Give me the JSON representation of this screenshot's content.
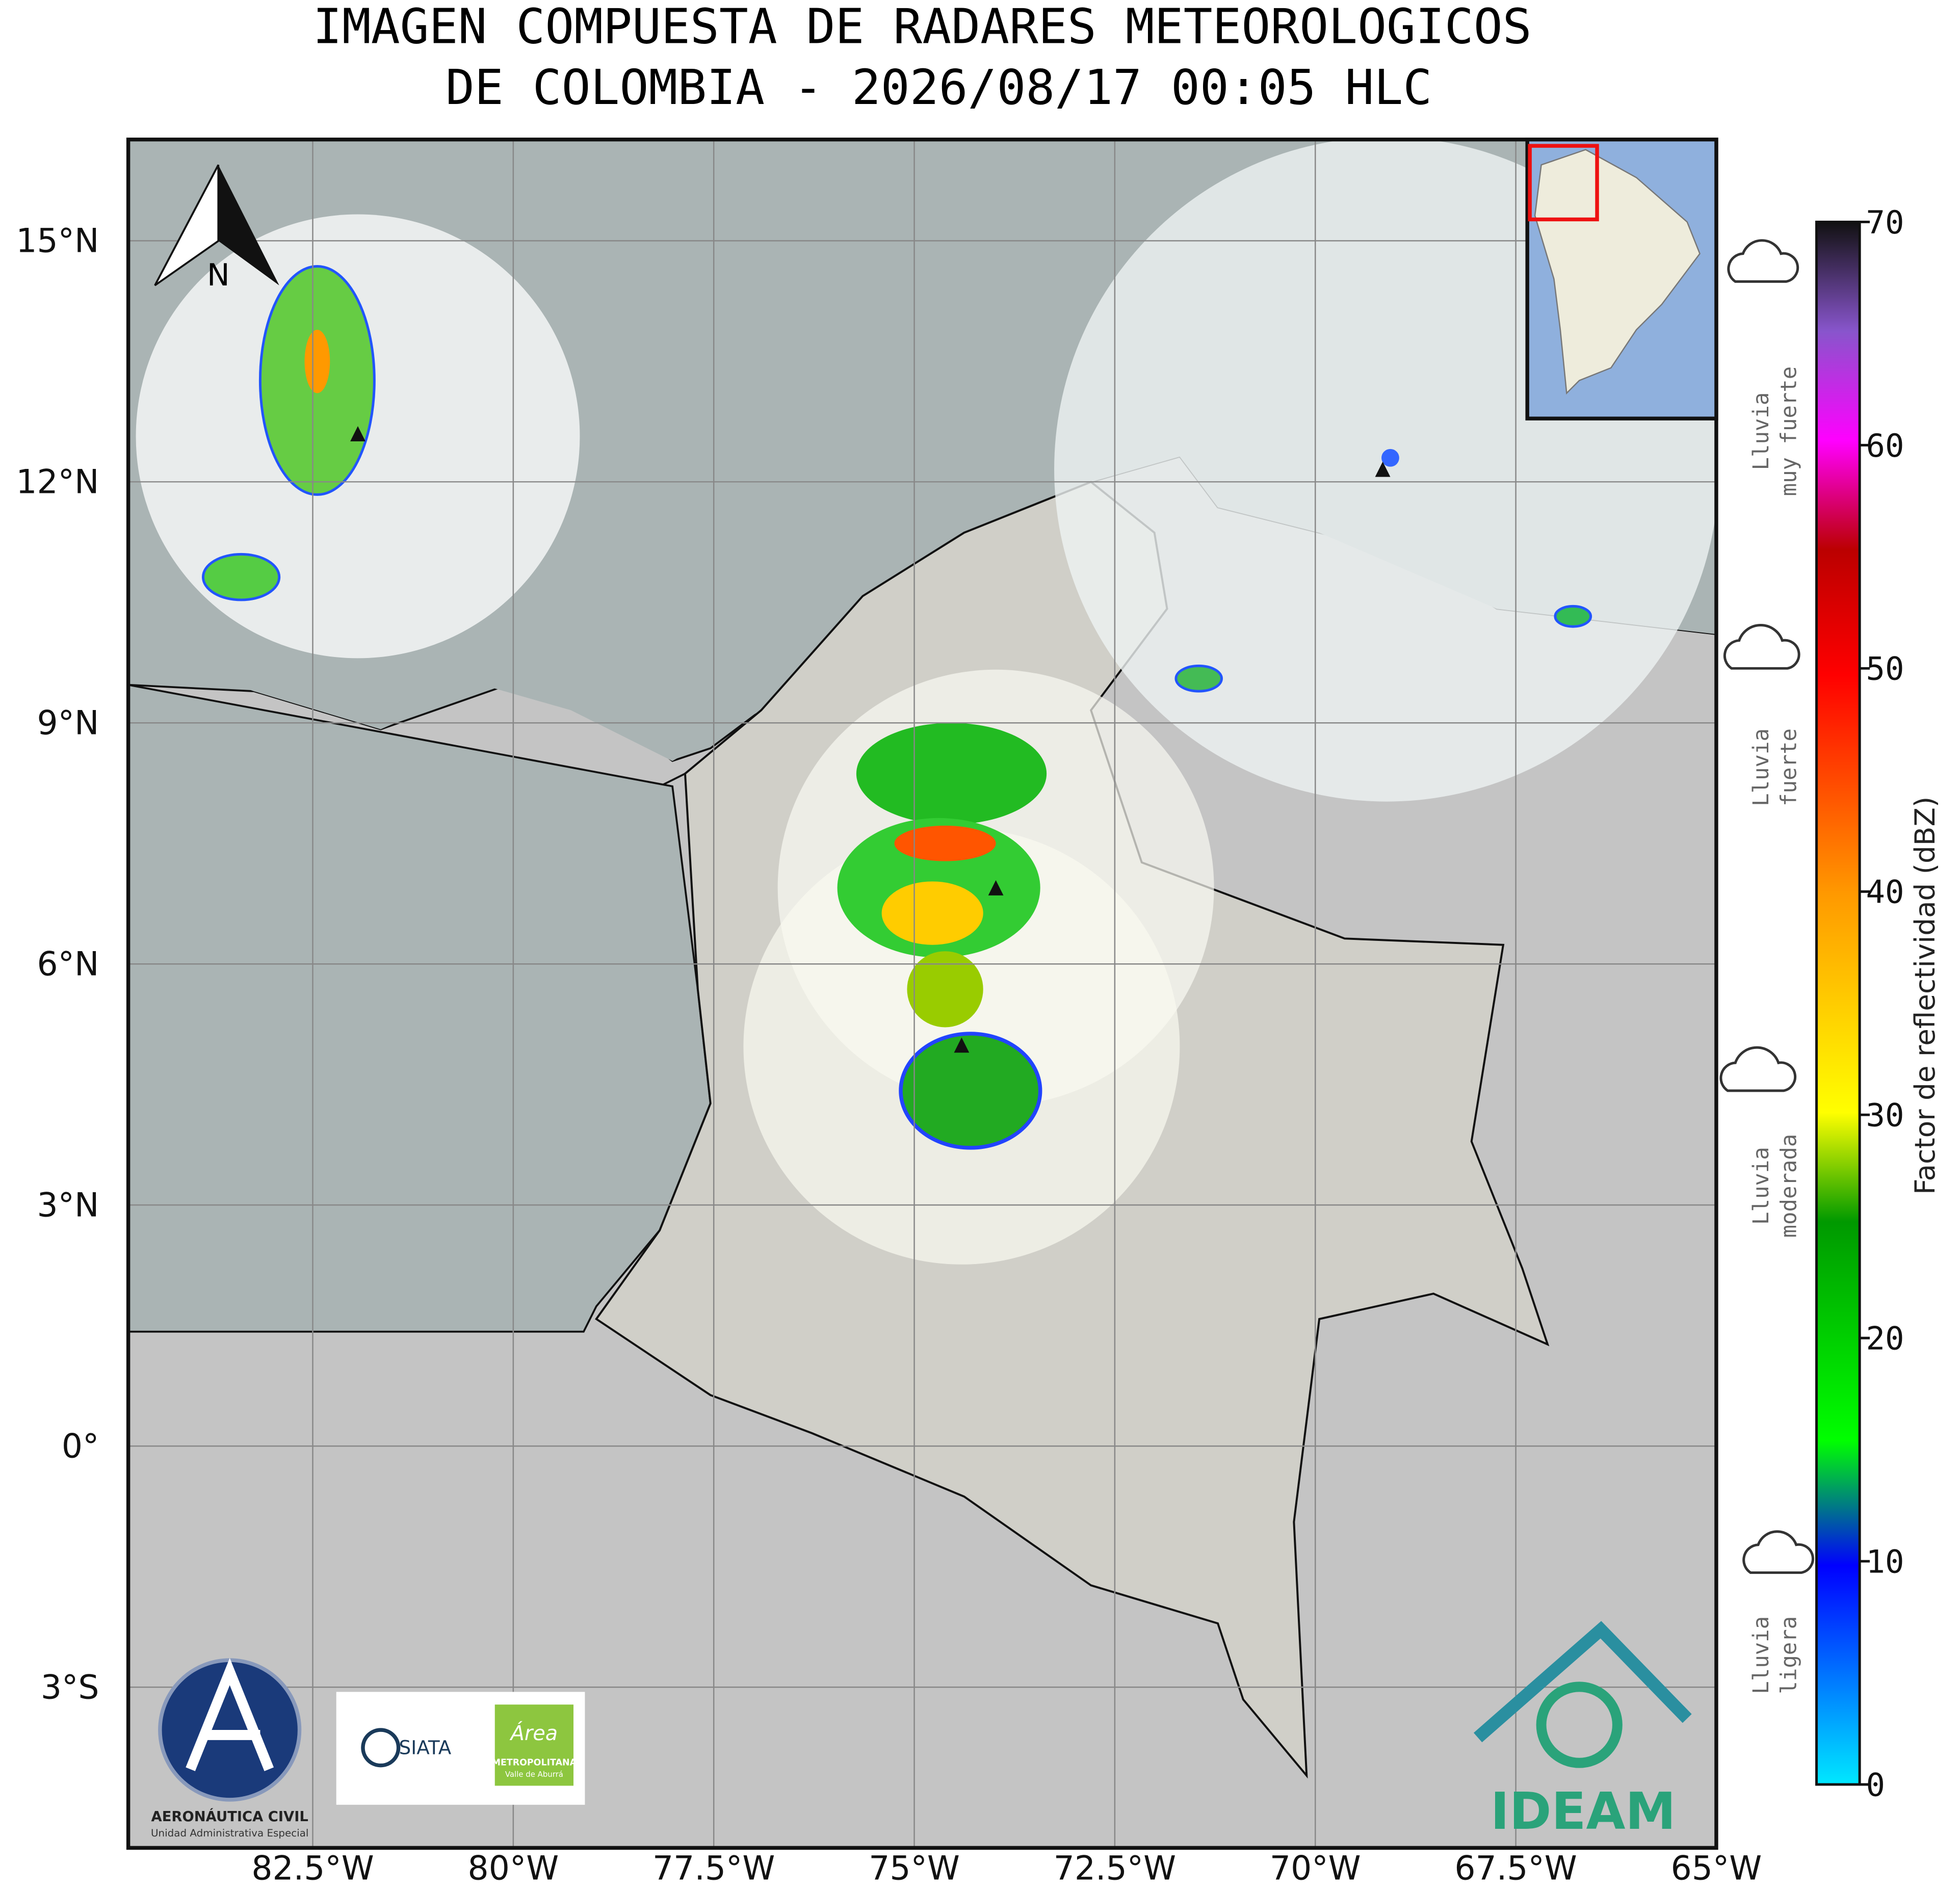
{
  "title": [
    "IMAGEN COMPUESTA DE RADARES METEOROLOGICOS",
    "DE COLOMBIA - 2026/08/17 00:05 HLC"
  ],
  "map": {
    "lon_range": [
      -84.8,
      -65
    ],
    "lat_range": [
      -5,
      16.26
    ],
    "lon_ticks": [
      {
        "value": -82.5,
        "label": "82.5°W"
      },
      {
        "value": -80,
        "label": "80°W"
      },
      {
        "value": -77.5,
        "label": "77.5°W"
      },
      {
        "value": -75,
        "label": "75°W"
      },
      {
        "value": -72.5,
        "label": "72.5°W"
      },
      {
        "value": -70,
        "label": "70°W"
      },
      {
        "value": -67.5,
        "label": "67.5°W"
      },
      {
        "value": -65,
        "label": "65°W"
      }
    ],
    "lat_ticks": [
      {
        "value": 15,
        "label": "15°N"
      },
      {
        "value": 12,
        "label": "12°N"
      },
      {
        "value": 9,
        "label": "9°N"
      },
      {
        "value": 6,
        "label": "6°N"
      },
      {
        "value": 3,
        "label": "3°N"
      },
      {
        "value": 0,
        "label": "0°"
      },
      {
        "value": -3,
        "label": "3°S"
      }
    ],
    "north": "N"
  },
  "colorbar": {
    "label": "Factor de reflectividad (dBZ)",
    "range": [
      0,
      70
    ],
    "ticks": [
      0,
      10,
      20,
      30,
      40,
      50,
      60,
      70
    ]
  },
  "rain_legend": [
    [
      "Lluvia",
      "muy fuerte"
    ],
    [
      "Lluvia",
      "fuerte"
    ],
    [
      "Lluvia",
      "moderada"
    ],
    [
      "Lluvia",
      "ligera"
    ]
  ],
  "logos": {
    "aerocivil": "AERONÁUTICA CIVIL",
    "aerocivil_sub": "Unidad Administrativa Especial",
    "siata": "SIATA",
    "area": "Área",
    "area_sub": "METROPOLITANA",
    "area_sub2": "Valle de Aburrá",
    "ideam": "IDEAM"
  }
}
